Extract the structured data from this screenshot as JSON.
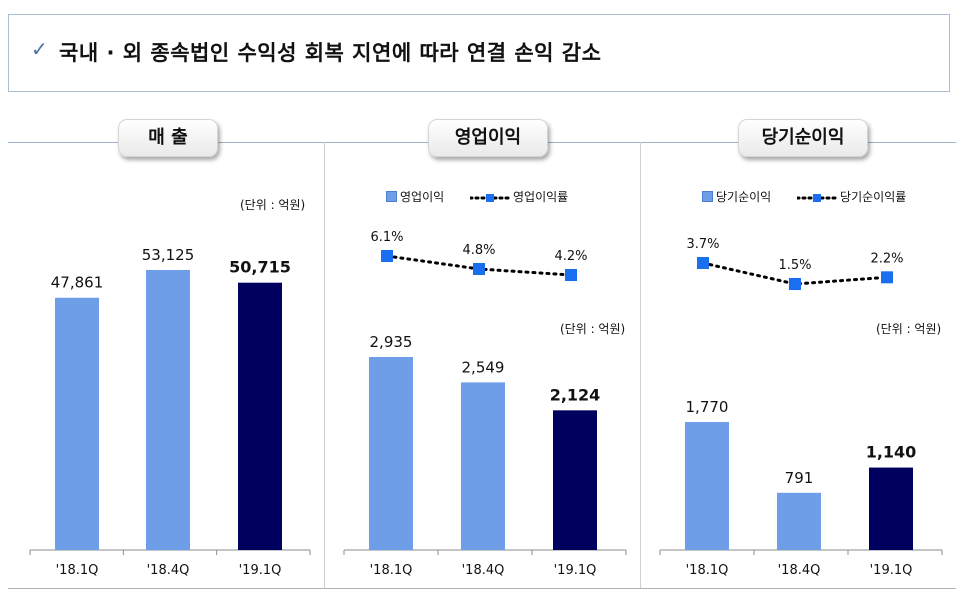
{
  "header": {
    "check_icon": "checkmark-icon",
    "title": "국내 · 외 종속법인 수익성 회복 지연에 따라 연결 손익 감소"
  },
  "colors": {
    "bar_light": "#6f9ee8",
    "bar_dark": "#00005e",
    "marker": "#1a6ef0",
    "dotted_line": "#000000"
  },
  "chart_data": [
    {
      "type": "bar",
      "title": "매 출",
      "unit": "(단위 : 억원)",
      "categories": [
        "'18.1Q",
        "'18.4Q",
        "'19.1Q"
      ],
      "values": [
        47861,
        53125,
        50715
      ],
      "value_labels": [
        "47,861",
        "53,125",
        "50,715"
      ],
      "highlight_index": 2
    },
    {
      "type": "bar",
      "title": "영업이익",
      "unit": "(단위 : 억원)",
      "categories": [
        "'18.1Q",
        "'18.4Q",
        "'19.1Q"
      ],
      "values": [
        2935,
        2549,
        2124
      ],
      "value_labels": [
        "2,935",
        "2,549",
        "2,124"
      ],
      "highlight_index": 2,
      "legend": {
        "bar": "영업이익",
        "line": "영업이익률"
      },
      "rate_series": {
        "name": "영업이익률",
        "values": [
          6.1,
          4.8,
          4.2
        ],
        "labels": [
          "6.1%",
          "4.8%",
          "4.2%"
        ]
      }
    },
    {
      "type": "bar",
      "title": "당기순이익",
      "unit": "(단위 : 억원)",
      "categories": [
        "'18.1Q",
        "'18.4Q",
        "'19.1Q"
      ],
      "values": [
        1770,
        791,
        1140
      ],
      "value_labels": [
        "1,770",
        "791",
        "1,140"
      ],
      "highlight_index": 2,
      "legend": {
        "bar": "당기순이익",
        "line": "당기순이익률"
      },
      "rate_series": {
        "name": "당기순이익률",
        "values": [
          3.7,
          1.5,
          2.2
        ],
        "labels": [
          "3.7%",
          "1.5%",
          "2.2%"
        ]
      }
    }
  ]
}
